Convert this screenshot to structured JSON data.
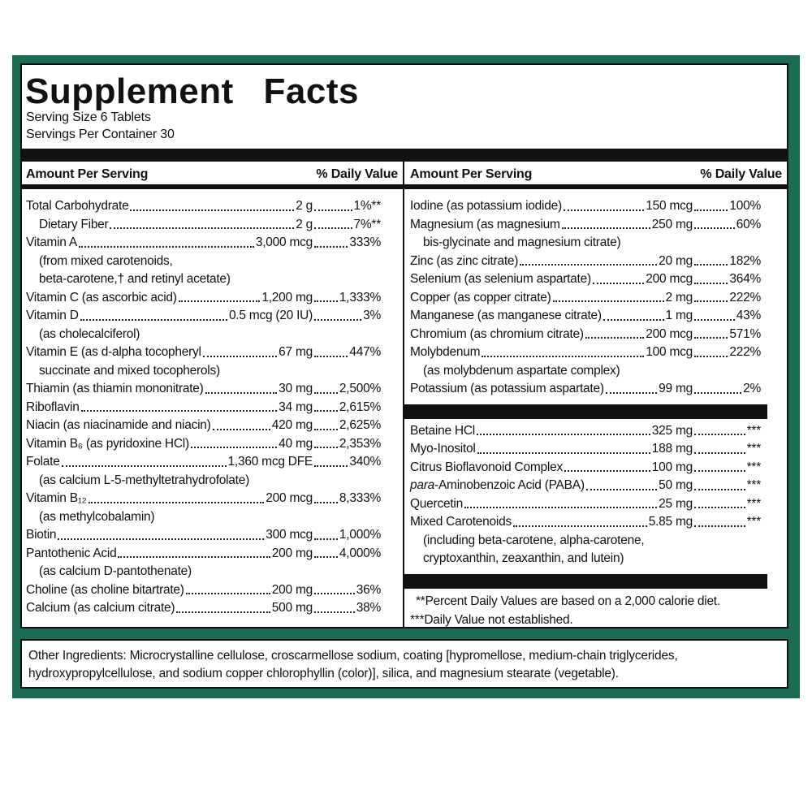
{
  "title": "Supplement Facts",
  "serving_size": "Serving Size 6 Tablets",
  "servings_per_container": "Servings Per Container 30",
  "header": {
    "amount": "Amount Per Serving",
    "daily_value": "% Daily Value"
  },
  "left_column": {
    "items": [
      {
        "name": "Total Carbohydrate",
        "amount": "2 g",
        "dv": "1%**",
        "subitems": [
          {
            "name": "Dietary Fiber",
            "amount": "2 g",
            "dv": "7%**"
          }
        ]
      },
      {
        "name": "Vitamin A",
        "amount": "3,000 mcg",
        "dv": "333%",
        "notes": [
          "(from mixed carotenoids,",
          "beta-carotene,† and retinyl acetate)"
        ]
      },
      {
        "name": "Vitamin C (as ascorbic acid)",
        "amount": "1,200 mg",
        "dv": "1,333%"
      },
      {
        "name": "Vitamin D",
        "amount": "0.5 mcg (20 IU)",
        "dv": "3%",
        "notes": [
          "(as cholecalciferol)"
        ]
      },
      {
        "name": "Vitamin E (as d-alpha tocopheryl",
        "amount": "67 mg",
        "dv": "447%",
        "notes": [
          "succinate and mixed tocopherols)"
        ]
      },
      {
        "name": "Thiamin (as thiamin mononitrate)",
        "amount": "30 mg",
        "dv": "2,500%"
      },
      {
        "name": "Riboflavin",
        "amount": "34 mg",
        "dv": "2,615%"
      },
      {
        "name": "Niacin (as niacinamide and niacin)",
        "amount": "420 mg",
        "dv": "2,625%"
      },
      {
        "name": "Vitamin B₆ (as pyridoxine HCl)",
        "amount": "40 mg",
        "dv": "2,353%"
      },
      {
        "name": "Folate",
        "amount": "1,360 mcg DFE",
        "dv": "340%",
        "notes": [
          "(as calcium L-5-methyltetrahydrofolate)"
        ]
      },
      {
        "name": "Vitamin B₁₂",
        "amount": "200 mcg",
        "dv": "8,333%",
        "notes": [
          "(as methylcobalamin)"
        ]
      },
      {
        "name": "Biotin",
        "amount": "300 mcg",
        "dv": "1,000%"
      },
      {
        "name": "Pantothenic Acid",
        "amount": "200 mg",
        "dv": "4,000%",
        "notes": [
          "(as calcium D-pantothenate)"
        ]
      },
      {
        "name": "Choline (as choline bitartrate)",
        "amount": "200 mg",
        "dv": "36%"
      },
      {
        "name": "Calcium (as calcium citrate)",
        "amount": "500 mg",
        "dv": "38%"
      }
    ]
  },
  "right_column": {
    "sections": [
      {
        "items": [
          {
            "name": "Iodine (as potassium iodide)",
            "amount": "150 mcg",
            "dv": "100%"
          },
          {
            "name": "Magnesium (as magnesium",
            "amount": "250 mg",
            "dv": "60%",
            "notes": [
              "bis-glycinate and magnesium citrate)"
            ]
          },
          {
            "name": "Zinc (as zinc citrate)",
            "amount": "20 mg",
            "dv": "182%"
          },
          {
            "name": "Selenium (as selenium aspartate)",
            "amount": "200 mcg",
            "dv": "364%"
          },
          {
            "name": "Copper (as copper citrate)",
            "amount": "2 mg",
            "dv": "222%"
          },
          {
            "name": "Manganese (as manganese citrate)",
            "amount": "1 mg",
            "dv": "43%"
          },
          {
            "name": "Chromium (as chromium citrate)",
            "amount": "200 mcg",
            "dv": "571%"
          },
          {
            "name": "Molybdenum",
            "amount": "100 mcg",
            "dv": "222%",
            "notes": [
              "(as molybdenum aspartate complex)"
            ]
          },
          {
            "name": "Potassium (as potassium aspartate)",
            "amount": "99 mg",
            "dv": "2%"
          }
        ]
      },
      {
        "items": [
          {
            "name": "Betaine HCl",
            "amount": "325 mg",
            "dv": "***"
          },
          {
            "name": "Myo-Inositol",
            "amount": "188 mg",
            "dv": "***"
          },
          {
            "name": "Citrus Bioflavonoid Complex",
            "amount": "100 mg",
            "dv": "***"
          },
          {
            "name": "para-Aminobenzoic Acid (PABA)",
            "amount": "50 mg",
            "dv": "***"
          },
          {
            "name": "Quercetin",
            "amount": "25 mg",
            "dv": "***"
          },
          {
            "name": "Mixed Carotenoids",
            "amount": "5.85 mg",
            "dv": "***",
            "notes": [
              "(including beta-carotene, alpha-carotene,",
              "cryptoxanthin, zeaxanthin, and lutein)"
            ]
          }
        ]
      }
    ],
    "footnotes": [
      "**Percent Daily Values are based on a 2,000 calorie diet.",
      "***Daily Value not established."
    ]
  },
  "other_ingredients": "Other Ingredients: Microcrystalline cellulose, croscarmellose sodium, coating [hypromellose, medium-chain triglycerides, hydroxypropylcellulose, and sodium copper chlorophyllin (color)], silica, and magnesium stearate (vegetable)."
}
